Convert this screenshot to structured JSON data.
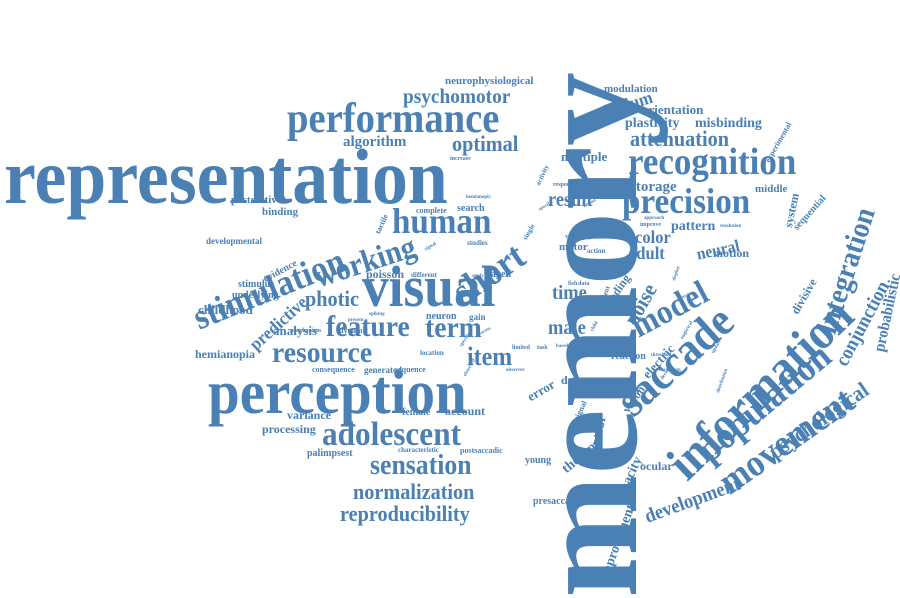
{
  "cloud": {
    "color": "#4a80b4",
    "words": [
      {
        "text": "memory",
        "role": "dominant"
      },
      {
        "text": "representation"
      },
      {
        "text": "perception"
      },
      {
        "text": "visual"
      },
      {
        "text": "information"
      },
      {
        "text": "saccade"
      },
      {
        "text": "performance"
      },
      {
        "text": "recognition"
      },
      {
        "text": "precision"
      },
      {
        "text": "population"
      },
      {
        "text": "movement"
      },
      {
        "text": "stimulation"
      },
      {
        "text": "working"
      },
      {
        "text": "short"
      },
      {
        "text": "human"
      },
      {
        "text": "model"
      },
      {
        "text": "feature"
      },
      {
        "text": "term"
      },
      {
        "text": "resource"
      },
      {
        "text": "adolescent"
      },
      {
        "text": "sensation"
      },
      {
        "text": "normalization"
      },
      {
        "text": "reproducibility"
      },
      {
        "text": "integration"
      },
      {
        "text": "development"
      },
      {
        "text": "psychological"
      },
      {
        "text": "probabilistic"
      },
      {
        "text": "conjunction"
      },
      {
        "text": "psychomotor"
      },
      {
        "text": "optimal"
      },
      {
        "text": "cerebellum"
      },
      {
        "text": "attenuation"
      },
      {
        "text": "plasticity"
      },
      {
        "text": "misbinding"
      },
      {
        "text": "orientation"
      },
      {
        "text": "modulation"
      },
      {
        "text": "neurophysiological"
      },
      {
        "text": "algorithm"
      },
      {
        "text": "storage"
      },
      {
        "text": "middle"
      },
      {
        "text": "result"
      },
      {
        "text": "multiple"
      },
      {
        "text": "color"
      },
      {
        "text": "adult"
      },
      {
        "text": "neural"
      },
      {
        "text": "pattern"
      },
      {
        "text": "motion"
      },
      {
        "text": "noise"
      },
      {
        "text": "item"
      },
      {
        "text": "time"
      },
      {
        "text": "male"
      },
      {
        "text": "photic"
      },
      {
        "text": "predictive"
      },
      {
        "text": "analysis"
      },
      {
        "text": "hemianopia"
      },
      {
        "text": "childhood"
      },
      {
        "text": "underlying"
      },
      {
        "text": "stimulus"
      },
      {
        "text": "evidence"
      },
      {
        "text": "poisson"
      },
      {
        "text": "binding"
      },
      {
        "text": "postdictive"
      },
      {
        "text": "developmental"
      },
      {
        "text": "variance"
      },
      {
        "text": "processing"
      },
      {
        "text": "palimpsest"
      },
      {
        "text": "characteristic"
      },
      {
        "text": "postsaccadic"
      },
      {
        "text": "female"
      },
      {
        "text": "account"
      },
      {
        "text": "error"
      },
      {
        "text": "decay"
      },
      {
        "text": "young"
      },
      {
        "text": "therapy"
      },
      {
        "text": "presaccadic"
      },
      {
        "text": "improvement"
      },
      {
        "text": "capacity"
      },
      {
        "text": "control"
      },
      {
        "text": "ocular"
      },
      {
        "text": "reaction"
      },
      {
        "text": "vision"
      },
      {
        "text": "electric"
      },
      {
        "text": "coding"
      },
      {
        "text": "divisive"
      },
      {
        "text": "system"
      },
      {
        "text": "sequential"
      },
      {
        "text": "experimental"
      },
      {
        "text": "search"
      },
      {
        "text": "complete"
      },
      {
        "text": "human"
      },
      {
        "text": "neuron"
      },
      {
        "text": "gain"
      },
      {
        "text": "sequence"
      },
      {
        "text": "generated"
      },
      {
        "text": "consequence"
      },
      {
        "text": "location"
      },
      {
        "text": "dynamic"
      },
      {
        "text": "mechanism"
      },
      {
        "text": "aged"
      },
      {
        "text": "different"
      },
      {
        "text": "motor"
      },
      {
        "text": "action"
      },
      {
        "text": "fish"
      },
      {
        "text": "data"
      },
      {
        "text": "limited"
      },
      {
        "text": "task"
      },
      {
        "text": "based"
      },
      {
        "text": "observer"
      },
      {
        "text": "maximum"
      },
      {
        "text": "distribution"
      },
      {
        "text": "improve"
      },
      {
        "text": "resolution"
      },
      {
        "text": "approach"
      },
      {
        "text": "constraint"
      },
      {
        "text": "response"
      },
      {
        "text": "hemianopic"
      },
      {
        "text": "increase"
      },
      {
        "text": "activity"
      },
      {
        "text": "tactile"
      },
      {
        "text": "single"
      },
      {
        "text": "studies"
      },
      {
        "text": "variability"
      },
      {
        "text": "spiking"
      },
      {
        "text": "study"
      },
      {
        "text": "child"
      },
      {
        "text": "patient"
      },
      {
        "text": "signal"
      },
      {
        "text": "specific"
      },
      {
        "text": "region"
      },
      {
        "text": "testing"
      },
      {
        "text": "display"
      },
      {
        "text": "empirical"
      },
      {
        "text": "update"
      },
      {
        "text": "decision"
      },
      {
        "text": "threshold"
      },
      {
        "text": "present"
      },
      {
        "text": "observed"
      },
      {
        "text": "process"
      },
      {
        "text": "focus"
      },
      {
        "text": "input"
      }
    ]
  }
}
